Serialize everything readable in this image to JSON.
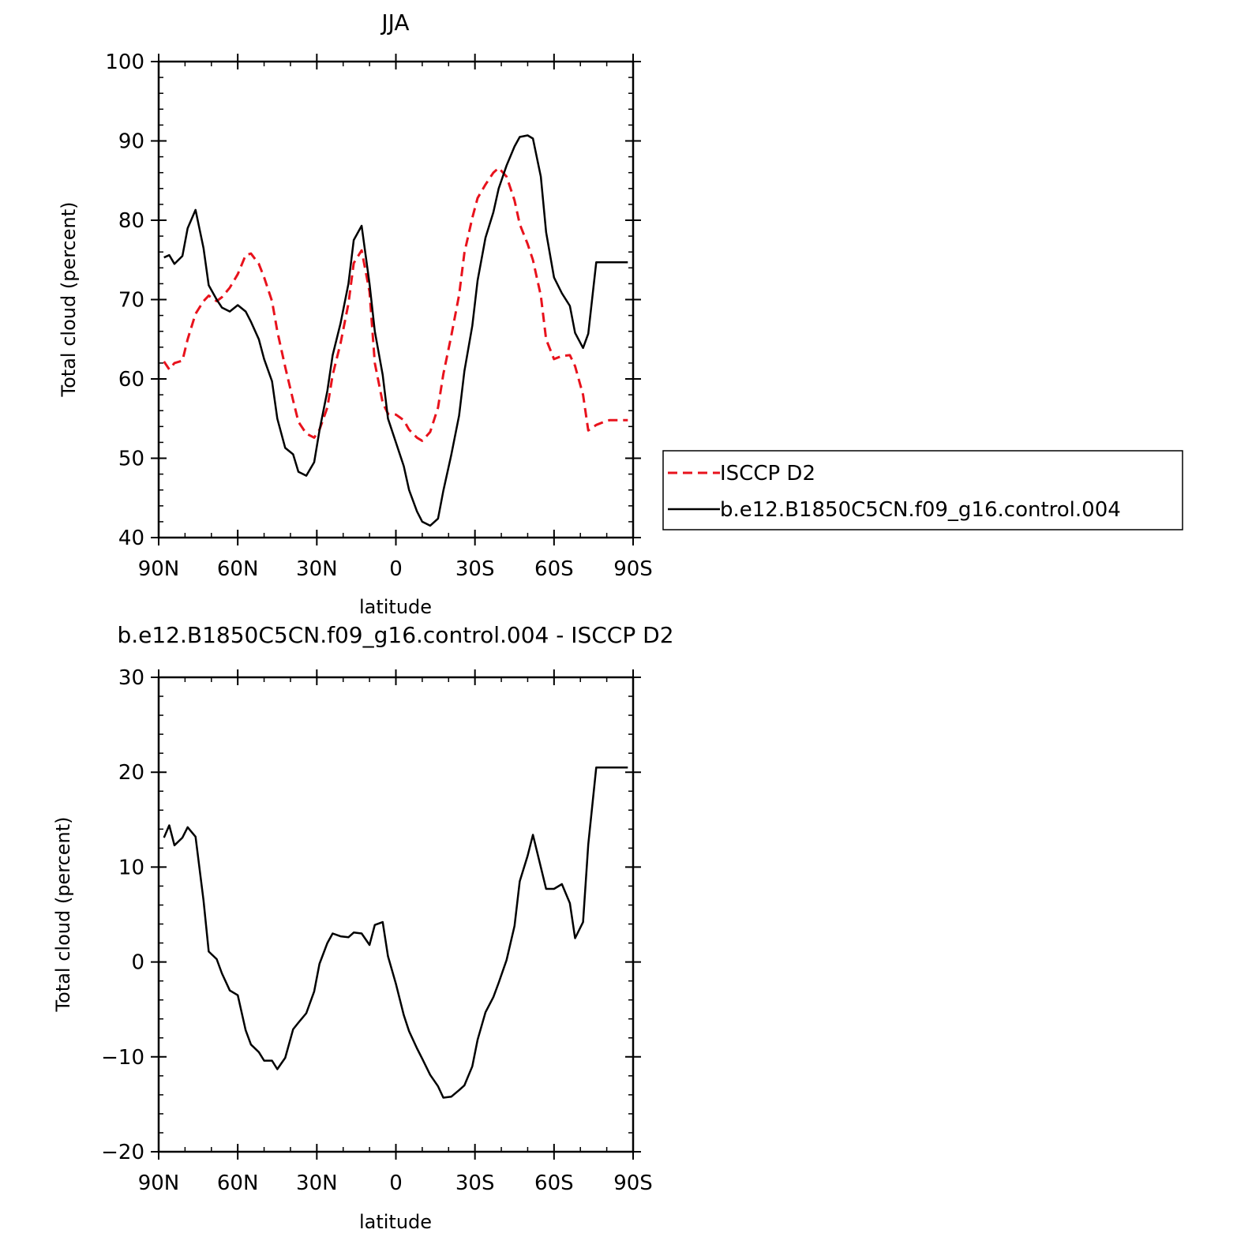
{
  "colors": {
    "obs": "#e8121c",
    "model": "#000000",
    "diff": "#000000"
  },
  "chart_data": [
    {
      "type": "line",
      "title": "JJA",
      "xlabel": "latitude",
      "ylabel": "Total cloud (percent)",
      "xlim": [
        90,
        -90
      ],
      "ylim": [
        40,
        100
      ],
      "yticks": [
        40,
        50,
        60,
        70,
        80,
        90,
        100
      ],
      "xticks": [
        90,
        60,
        30,
        0,
        -30,
        -60,
        -90
      ],
      "xtick_labels": [
        "90N",
        "60N",
        "30N",
        "0",
        "30S",
        "60S",
        "90S"
      ],
      "legend": {
        "position": "right",
        "entries": [
          "ISCCP D2",
          "b.e12.B1850C5CN.f09_g16.control.004"
        ]
      },
      "series": [
        {
          "name": "ISCCP D2",
          "style": "dashed",
          "x": [
            88,
            86,
            84,
            81,
            79,
            76,
            73,
            71,
            68,
            66,
            63,
            60,
            57,
            55,
            52,
            50,
            47,
            45,
            42,
            39,
            37,
            34,
            31,
            29,
            26,
            24,
            21,
            18,
            16,
            13,
            10,
            8,
            5,
            3,
            0,
            -3,
            -5,
            -8,
            -10,
            -13,
            -16,
            -18,
            -21,
            -24,
            -26,
            -29,
            -31,
            -34,
            -37,
            -39,
            -42,
            -45,
            -47,
            -50,
            -52,
            -55,
            -57,
            -60,
            -63,
            -66,
            -68,
            -71,
            -73,
            -76,
            -79,
            -81,
            -84,
            -86,
            -88
          ],
          "values": [
            62.2,
            61.2,
            62.0,
            62.3,
            65.0,
            68.2,
            69.8,
            70.5,
            69.8,
            70.3,
            71.5,
            73.2,
            75.6,
            75.8,
            74.5,
            72.8,
            69.8,
            66.0,
            61.5,
            57.3,
            54.6,
            53.1,
            52.6,
            53.6,
            56.4,
            60.5,
            64.5,
            69.5,
            74.6,
            76.2,
            71.0,
            62.0,
            57.0,
            55.6,
            55.5,
            54.8,
            53.6,
            52.6,
            52.2,
            53.3,
            56.4,
            60.6,
            65.4,
            70.6,
            75.9,
            80.3,
            82.8,
            84.5,
            86.0,
            86.6,
            85.5,
            82.5,
            79.5,
            77.0,
            75.0,
            70.5,
            65.0,
            62.5,
            62.9,
            63.0,
            61.6,
            58.0,
            53.5,
            54.2,
            54.6,
            54.8,
            54.8,
            54.8,
            54.8
          ]
        },
        {
          "name": "b.e12.B1850C5CN.f09_g16.control.004",
          "style": "solid",
          "x": [
            88,
            86,
            84,
            81,
            79,
            76,
            73,
            71,
            68,
            66,
            63,
            60,
            57,
            55,
            52,
            50,
            47,
            45,
            42,
            39,
            37,
            34,
            31,
            29,
            26,
            24,
            21,
            18,
            16,
            13,
            10,
            8,
            5,
            3,
            0,
            -3,
            -5,
            -8,
            -10,
            -13,
            -16,
            -18,
            -21,
            -24,
            -26,
            -29,
            -31,
            -34,
            -37,
            -39,
            -42,
            -45,
            -47,
            -50,
            -52,
            -55,
            -57,
            -60,
            -63,
            -66,
            -68,
            -71,
            -73,
            -76,
            -79,
            -81,
            -84,
            -86,
            -88
          ],
          "values": [
            75.3,
            75.6,
            74.5,
            75.5,
            79.0,
            81.3,
            76.5,
            71.8,
            70.0,
            69.0,
            68.5,
            69.3,
            68.5,
            67.2,
            65.0,
            62.5,
            59.7,
            55.0,
            51.3,
            50.5,
            48.3,
            47.8,
            49.5,
            53.5,
            58.5,
            63.0,
            67.0,
            72.0,
            77.5,
            79.3,
            72.0,
            66.0,
            60.5,
            55.0,
            52.0,
            49.0,
            46.0,
            43.3,
            42.0,
            41.5,
            42.4,
            45.9,
            50.4,
            55.4,
            61.0,
            66.7,
            72.4,
            77.8,
            81.0,
            84.0,
            86.9,
            89.3,
            90.5,
            90.7,
            90.3,
            85.5,
            78.5,
            72.8,
            70.8,
            69.2,
            65.8,
            63.9,
            65.7,
            74.7,
            74.7,
            74.7,
            74.7,
            74.7,
            74.7
          ]
        }
      ]
    },
    {
      "type": "line",
      "title": "b.e12.B1850C5CN.f09_g16.control.004 - ISCCP D2",
      "xlabel": "latitude",
      "ylabel": "Total cloud (percent)",
      "xlim": [
        90,
        -90
      ],
      "ylim": [
        -20,
        30
      ],
      "yticks": [
        -20,
        -10,
        0,
        10,
        20,
        30
      ],
      "ytick_labels": [
        "−20",
        "−10",
        "0",
        "10",
        "20",
        "30"
      ],
      "xticks": [
        90,
        60,
        30,
        0,
        -30,
        -60,
        -90
      ],
      "xtick_labels": [
        "90N",
        "60N",
        "30N",
        "0",
        "30S",
        "60S",
        "90S"
      ],
      "series": [
        {
          "style": "solid",
          "x": [
            88,
            86,
            84,
            81,
            79,
            76,
            73,
            71,
            68,
            66,
            63,
            60,
            57,
            55,
            52,
            50,
            47,
            45,
            42,
            39,
            37,
            34,
            31,
            29,
            26,
            24,
            21,
            18,
            16,
            13,
            10,
            8,
            5,
            3,
            0,
            -3,
            -5,
            -8,
            -10,
            -13,
            -16,
            -18,
            -21,
            -24,
            -26,
            -29,
            -31,
            -34,
            -37,
            -39,
            -42,
            -45,
            -47,
            -50,
            -52,
            -55,
            -57,
            -60,
            -63,
            -66,
            -68,
            -71,
            -73,
            -76,
            -79,
            -81,
            -84,
            -86,
            -88
          ],
          "values": [
            13.1,
            14.4,
            12.3,
            13.1,
            14.2,
            13.2,
            6.5,
            1.1,
            0.3,
            -1.2,
            -3.0,
            -3.5,
            -7.2,
            -8.7,
            -9.5,
            -10.4,
            -10.4,
            -11.3,
            -10.1,
            -7.1,
            -6.4,
            -5.4,
            -3.1,
            -0.2,
            2.0,
            3.0,
            2.7,
            2.6,
            3.1,
            3.0,
            1.8,
            3.9,
            4.2,
            0.6,
            -2.3,
            -5.6,
            -7.3,
            -9.1,
            -10.2,
            -11.9,
            -13.1,
            -14.3,
            -14.2,
            -13.5,
            -13.0,
            -11.0,
            -8.2,
            -5.3,
            -3.7,
            -2.2,
            0.2,
            3.8,
            8.5,
            11.2,
            13.4,
            10.0,
            7.7,
            7.7,
            8.2,
            6.2,
            2.5,
            4.2,
            12.4,
            20.5,
            20.5,
            20.5,
            20.5,
            20.5,
            20.5
          ]
        }
      ]
    }
  ]
}
